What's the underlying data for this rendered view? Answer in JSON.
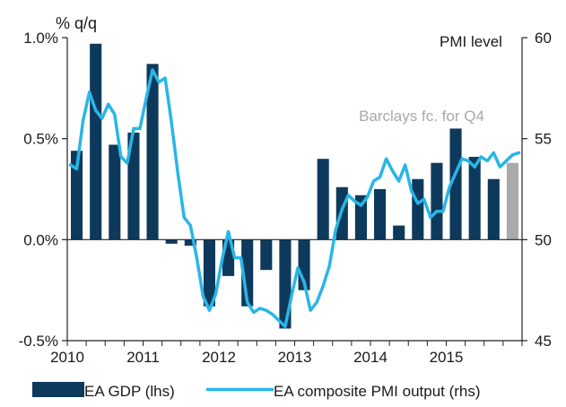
{
  "chart_data": {
    "type": "bar+line",
    "left_axis_label": "% q/q",
    "right_axis_label": "PMI level",
    "annotation": "Barclays fc. for Q4",
    "ylim_left": [
      -0.5,
      1.0
    ],
    "ylim_right": [
      45,
      60
    ],
    "left_ticks": [
      {
        "value": 1.0,
        "label": "1.0%"
      },
      {
        "value": 0.5,
        "label": "0.5%"
      },
      {
        "value": 0.0,
        "label": "0.0%"
      },
      {
        "value": -0.5,
        "label": "-0.5%"
      }
    ],
    "right_ticks": [
      {
        "value": 60,
        "label": "60"
      },
      {
        "value": 55,
        "label": "55"
      },
      {
        "value": 50,
        "label": "50"
      },
      {
        "value": 45,
        "label": "45"
      }
    ],
    "x_ticks": [
      {
        "label": "2010",
        "quarter_index": 0
      },
      {
        "label": "2011",
        "quarter_index": 4
      },
      {
        "label": "2012",
        "quarter_index": 8
      },
      {
        "label": "2013",
        "quarter_index": 12
      },
      {
        "label": "2014",
        "quarter_index": 16
      },
      {
        "label": "2015",
        "quarter_index": 20
      }
    ],
    "gdp_series": {
      "name": "EA GDP (lhs)",
      "color": "#0d3a5c",
      "forecast_color": "#aaaaaa",
      "quarters": [
        "2010Q1",
        "2010Q2",
        "2010Q3",
        "2010Q4",
        "2011Q1",
        "2011Q2",
        "2011Q3",
        "2011Q4",
        "2012Q1",
        "2012Q2",
        "2012Q3",
        "2012Q4",
        "2013Q1",
        "2013Q2",
        "2013Q3",
        "2013Q4",
        "2014Q1",
        "2014Q2",
        "2014Q3",
        "2014Q4",
        "2015Q1",
        "2015Q2",
        "2015Q3",
        "2015Q4"
      ],
      "values": [
        0.44,
        0.97,
        0.47,
        0.53,
        0.87,
        -0.02,
        -0.03,
        -0.33,
        -0.18,
        -0.33,
        -0.15,
        -0.44,
        -0.25,
        0.4,
        0.26,
        0.22,
        0.25,
        0.07,
        0.3,
        0.38,
        0.55,
        0.41,
        0.3,
        0.38
      ],
      "forecast": [
        false,
        false,
        false,
        false,
        false,
        false,
        false,
        false,
        false,
        false,
        false,
        false,
        false,
        false,
        false,
        false,
        false,
        false,
        false,
        false,
        false,
        false,
        false,
        true
      ]
    },
    "pmi_series": {
      "name": "EA composite PMI output (rhs)",
      "color": "#29b6e6",
      "x_months": [
        0,
        1,
        2,
        3,
        4,
        5,
        6,
        7,
        8,
        9,
        10,
        11,
        12,
        13,
        14,
        15,
        16,
        17,
        18,
        19,
        20,
        21,
        22,
        23,
        24,
        25,
        26,
        27,
        28,
        29,
        30,
        31,
        32,
        33,
        34,
        35,
        36,
        37,
        38,
        39,
        40,
        41,
        42,
        43,
        44,
        45,
        46,
        47,
        48,
        49,
        50,
        51,
        52,
        53,
        54,
        55,
        56,
        57,
        58,
        59,
        60,
        61,
        62,
        63,
        64,
        65,
        66,
        67,
        68,
        69,
        70,
        71
      ],
      "values": [
        53.7,
        53.5,
        55.9,
        57.3,
        56.4,
        56.0,
        56.7,
        56.2,
        54.1,
        53.8,
        55.5,
        55.5,
        57.0,
        58.4,
        57.8,
        58.0,
        55.8,
        53.3,
        51.1,
        50.7,
        49.1,
        47.2,
        46.5,
        47.3,
        49.0,
        50.4,
        49.1,
        49.1,
        46.9,
        46.4,
        46.6,
        46.5,
        46.3,
        46.0,
        45.7,
        47.2,
        48.6,
        47.9,
        46.5,
        46.9,
        47.7,
        48.7,
        50.5,
        51.5,
        52.2,
        51.9,
        51.7,
        52.1,
        52.9,
        53.1,
        54.0,
        53.4,
        52.9,
        53.7,
        52.4,
        51.8,
        52.0,
        51.1,
        51.4,
        51.4,
        52.6,
        53.3,
        54.0,
        53.9,
        53.6,
        54.1,
        53.9,
        54.3,
        53.6,
        53.9,
        54.2,
        54.3
      ]
    }
  }
}
